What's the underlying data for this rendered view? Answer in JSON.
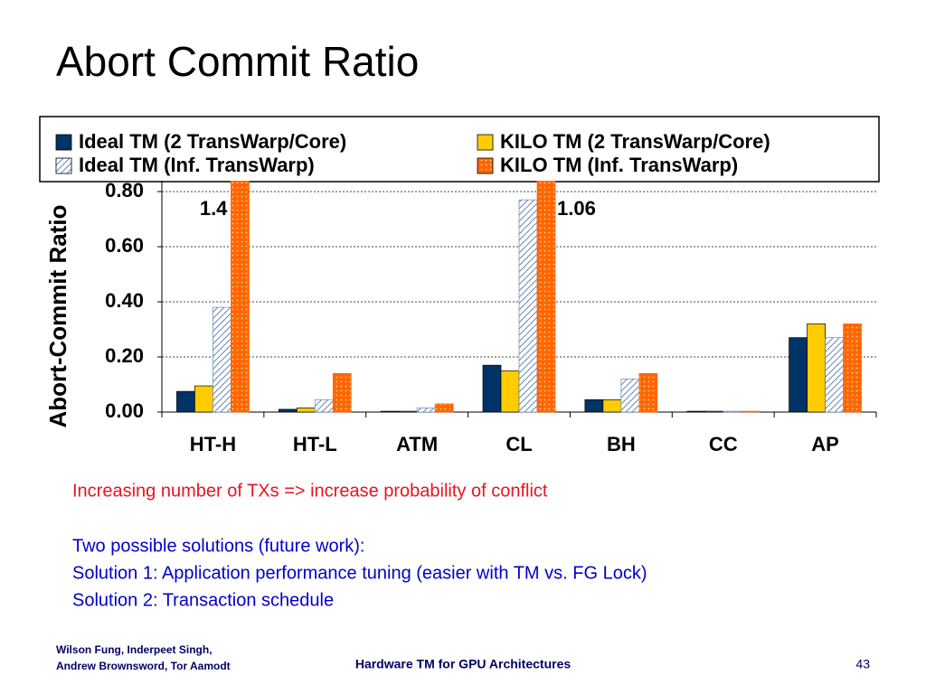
{
  "slide": {
    "title": "Abort Commit Ratio",
    "notes": [
      "Increasing number of TXs => increase probability of conflict",
      "Two possible solutions (future work):",
      "Solution 1:  Application performance tuning (easier with TM vs. FG Lock)",
      "Solution 2:  Transaction schedule"
    ],
    "footer": {
      "authors": [
        "Wilson Fung, Inderpeet Singh,",
        "Andrew Brownsword, Tor Aamodt"
      ],
      "center": "Hardware TM for GPU Architectures",
      "page": "43"
    }
  },
  "chart_data": {
    "type": "bar",
    "y_label": "Abort-Commit Ratio",
    "categories": [
      "HT-H",
      "HT-L",
      "ATM",
      "CL",
      "BH",
      "CC",
      "AP"
    ],
    "ylim": [
      0,
      0.8
    ],
    "yticks": [
      {
        "value": 0,
        "label": "0.00"
      },
      {
        "value": 0.2,
        "label": "0.20"
      },
      {
        "value": 0.4,
        "label": "0.40"
      },
      {
        "value": 0.6,
        "label": "0.60"
      },
      {
        "value": 0.8,
        "label": "0.80"
      }
    ],
    "grid": true,
    "series": [
      {
        "name": "Ideal TM (2 TransWarp/Core)",
        "color": "#003366",
        "pattern": "solid",
        "values": [
          0.075,
          0.01,
          0.003,
          0.17,
          0.045,
          0.003,
          0.27
        ]
      },
      {
        "name": "KILO TM (2 TransWarp/Core)",
        "color": "#ffcc00",
        "pattern": "solid",
        "values": [
          0.095,
          0.015,
          0.003,
          0.15,
          0.045,
          0.003,
          0.32
        ]
      },
      {
        "name": "Ideal TM (Inf. TransWarp)",
        "color": "#6688bb",
        "pattern": "hatch",
        "values": [
          0.38,
          0.045,
          0.015,
          0.77,
          0.12,
          0.003,
          0.27
        ]
      },
      {
        "name": "KILO TM (Inf. TransWarp)",
        "color": "#ff6600",
        "pattern": "dots",
        "values": [
          1.4,
          0.14,
          0.03,
          1.06,
          0.14,
          0.003,
          0.32
        ],
        "value_labels": [
          "1.4",
          null,
          null,
          "1.06",
          null,
          null,
          null
        ]
      }
    ]
  }
}
